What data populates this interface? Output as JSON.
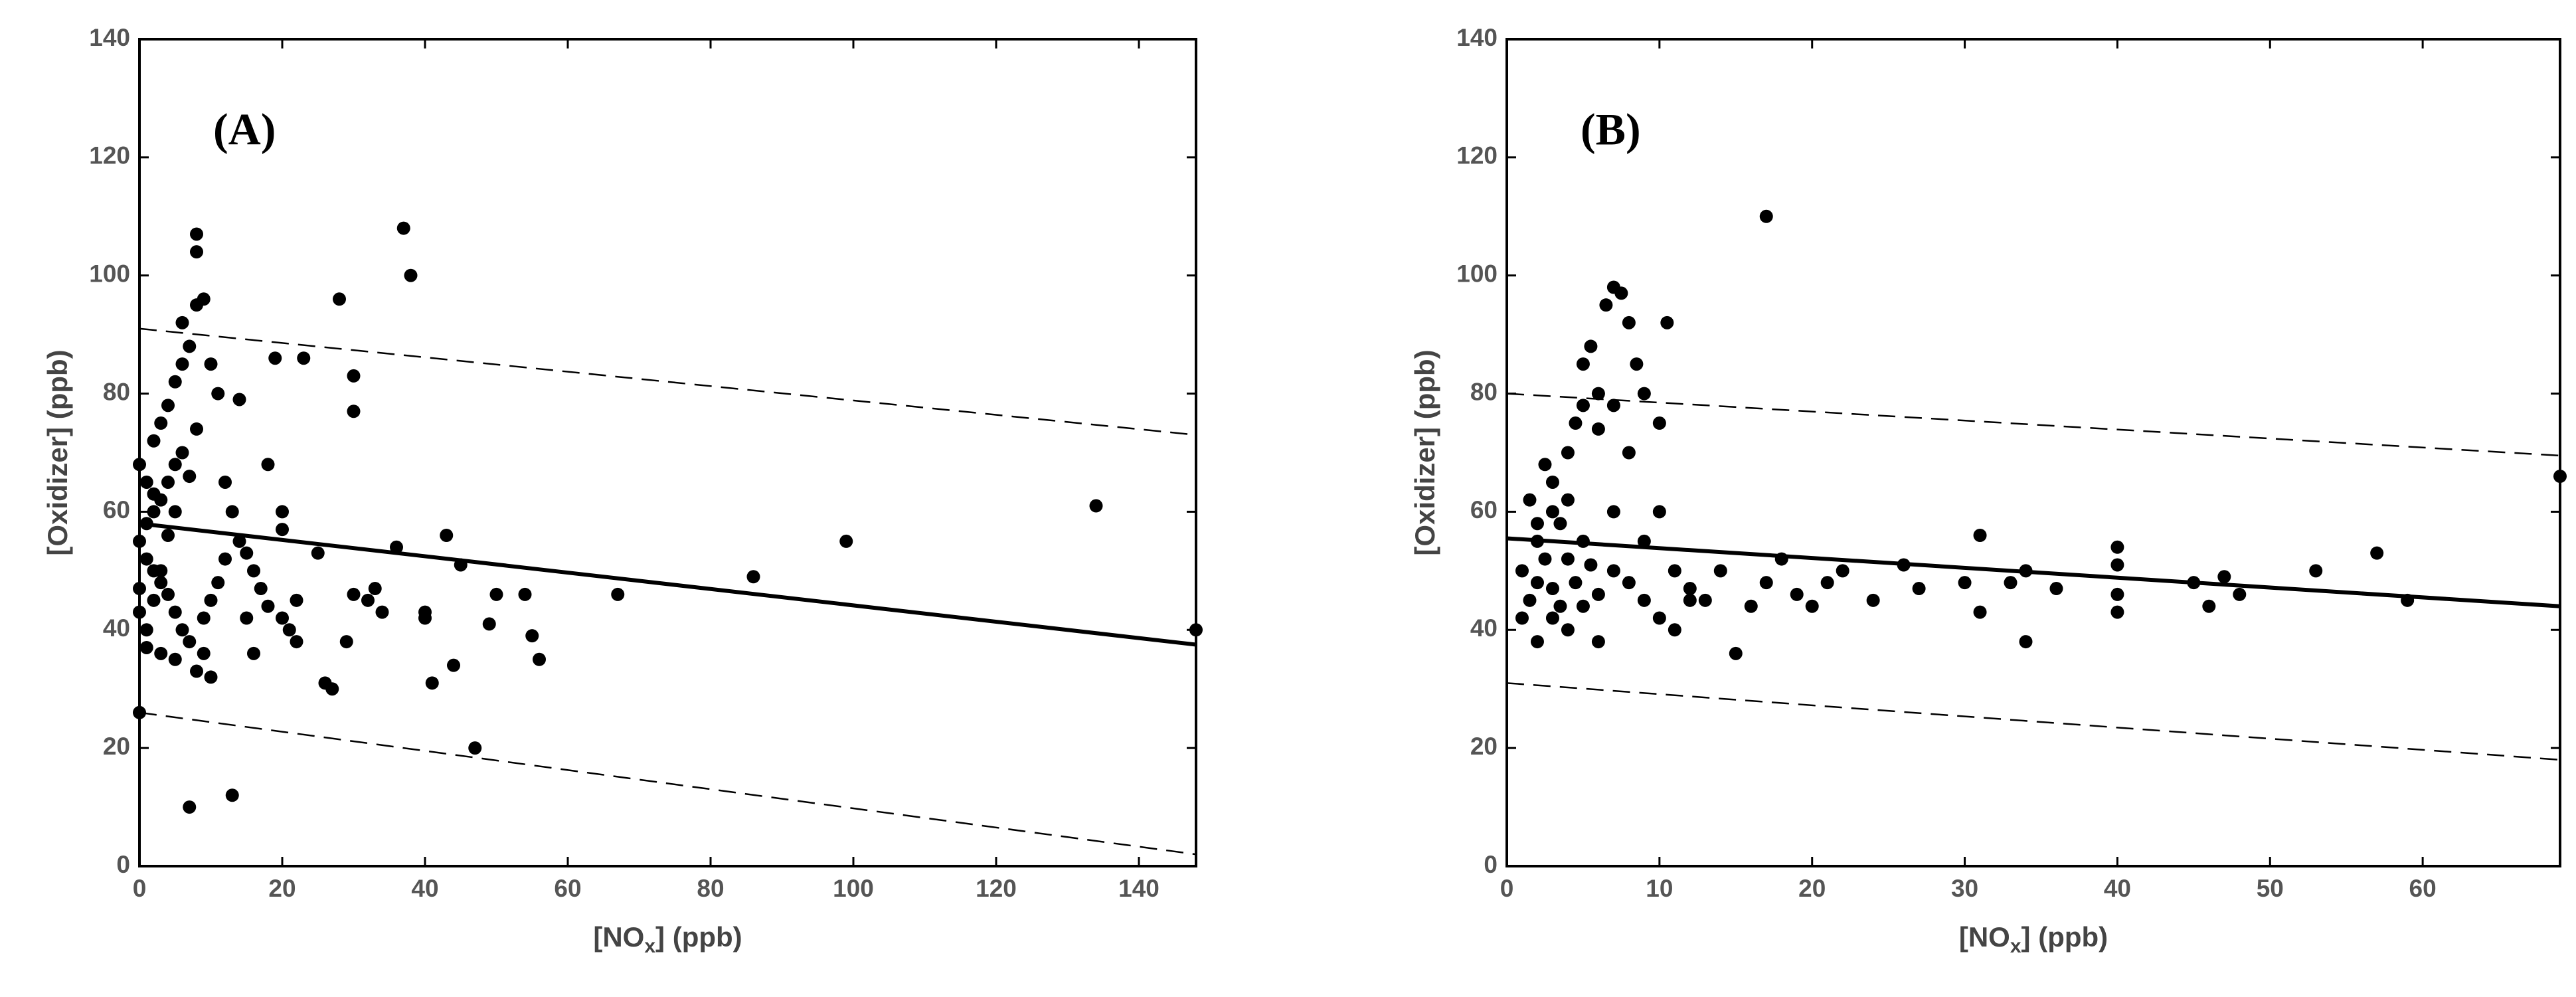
{
  "chart_data": [
    {
      "type": "scatter",
      "annotation": "(A)",
      "ylabel": "[Oxidizer] (ppb)",
      "xlabel": [
        "[NO",
        "x",
        "] (ppb)"
      ],
      "xlim": [
        0,
        148
      ],
      "xticks": [
        0,
        20,
        40,
        60,
        80,
        100,
        120,
        140
      ],
      "ylim": [
        0,
        140
      ],
      "yticks": [
        0,
        20,
        40,
        60,
        80,
        100,
        120,
        140
      ],
      "color": "#000000",
      "points": {
        "x": [
          0,
          7,
          13,
          47,
          41,
          44,
          56,
          55,
          49,
          40,
          40,
          34,
          32,
          30,
          29,
          26,
          27,
          22,
          21,
          20,
          18,
          17,
          16,
          15,
          14,
          12,
          11,
          10,
          9,
          9,
          8,
          10,
          7,
          6,
          5,
          4,
          3,
          2,
          1,
          0,
          1,
          2,
          3,
          4,
          5,
          6,
          2,
          3,
          4,
          5,
          6,
          7,
          6,
          8,
          9,
          8,
          8,
          37,
          38,
          28,
          19,
          23,
          30,
          30,
          14,
          18,
          10,
          11,
          8,
          7,
          5,
          4,
          3,
          2,
          1,
          3,
          5,
          12,
          13,
          20,
          25,
          33,
          36,
          43,
          45,
          50,
          54,
          67,
          86,
          99,
          134,
          148,
          0,
          1,
          2,
          0,
          0,
          1,
          15,
          16,
          20,
          22
        ],
        "values": [
          26,
          10,
          12,
          20,
          31,
          34,
          35,
          39,
          41,
          42,
          43,
          43,
          45,
          46,
          38,
          31,
          30,
          38,
          40,
          42,
          44,
          47,
          50,
          53,
          55,
          52,
          48,
          45,
          42,
          36,
          33,
          32,
          38,
          40,
          43,
          46,
          48,
          50,
          52,
          55,
          58,
          60,
          62,
          65,
          68,
          70,
          72,
          75,
          78,
          82,
          85,
          88,
          92,
          95,
          96,
          104,
          107,
          108,
          100,
          96,
          86,
          86,
          83,
          77,
          79,
          68,
          85,
          80,
          74,
          66,
          60,
          56,
          50,
          45,
          40,
          36,
          35,
          65,
          60,
          57,
          53,
          47,
          54,
          56,
          51,
          46,
          46,
          46,
          49,
          55,
          61,
          40,
          68,
          65,
          63,
          47,
          43,
          37,
          42,
          36,
          60,
          45
        ]
      },
      "lines": [
        {
          "style": "solid",
          "x": [
            0,
            148
          ],
          "values": [
            58,
            37.5
          ]
        },
        {
          "style": "dashed",
          "x": [
            0,
            148
          ],
          "values": [
            91,
            73
          ]
        },
        {
          "style": "dashed",
          "x": [
            0,
            148
          ],
          "values": [
            26,
            2
          ]
        }
      ]
    },
    {
      "type": "scatter",
      "annotation": "(B)",
      "ylabel": "[Oxidizer] (ppb)",
      "xlabel": [
        "[NO",
        "x",
        "] (ppb)"
      ],
      "xlim": [
        0,
        69
      ],
      "xticks": [
        0,
        10,
        20,
        30,
        40,
        50,
        60
      ],
      "ylim": [
        0,
        140
      ],
      "yticks": [
        0,
        20,
        40,
        60,
        80,
        100,
        120,
        140
      ],
      "color": "#000000",
      "points": {
        "x": [
          1,
          1.5,
          2,
          2,
          2.5,
          3,
          3,
          3.5,
          4,
          4,
          4.5,
          5,
          5,
          5.5,
          6,
          6.5,
          7,
          7.5,
          8,
          8.5,
          9,
          10,
          10.5,
          3,
          2,
          4,
          5,
          6,
          7,
          8,
          9,
          10,
          11,
          12,
          13,
          14,
          15,
          16,
          17,
          17,
          18,
          19,
          20,
          21,
          22,
          24,
          26,
          27,
          30,
          31,
          31,
          33,
          34,
          34,
          36,
          40,
          40,
          40,
          40,
          45,
          46,
          47,
          48,
          53,
          57,
          59,
          69,
          1,
          2,
          3,
          4,
          5,
          6,
          7,
          8,
          1.5,
          2.5,
          3.5,
          4.5,
          5.5,
          6,
          7,
          9,
          10,
          11,
          12
        ],
        "values": [
          50,
          45,
          48,
          55,
          52,
          47,
          60,
          58,
          62,
          70,
          75,
          78,
          85,
          88,
          80,
          95,
          98,
          97,
          92,
          85,
          80,
          75,
          92,
          42,
          38,
          40,
          44,
          46,
          50,
          48,
          45,
          42,
          50,
          47,
          45,
          50,
          36,
          44,
          110,
          48,
          52,
          46,
          44,
          48,
          50,
          45,
          51,
          47,
          48,
          56,
          43,
          48,
          50,
          38,
          47,
          46,
          54,
          43,
          51,
          48,
          44,
          49,
          46,
          50,
          53,
          45,
          66,
          42,
          58,
          65,
          52,
          55,
          38,
          60,
          70,
          62,
          68,
          44,
          48,
          51,
          74,
          78,
          55,
          60,
          40,
          45
        ]
      },
      "lines": [
        {
          "style": "solid",
          "x": [
            0,
            69
          ],
          "values": [
            55.5,
            44
          ]
        },
        {
          "style": "dashed",
          "x": [
            0,
            69
          ],
          "values": [
            80,
            69.5
          ]
        },
        {
          "style": "dashed",
          "x": [
            0,
            69
          ],
          "values": [
            31,
            18
          ]
        }
      ]
    }
  ]
}
